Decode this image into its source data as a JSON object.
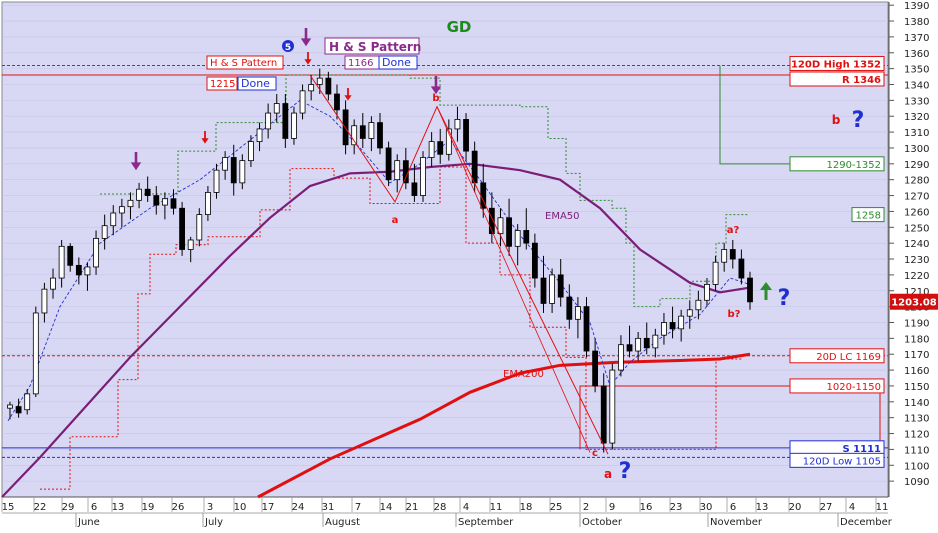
{
  "chart_data": {
    "type": "candlestick",
    "title": "GD",
    "ylim": [
      1080,
      1392
    ],
    "y_ticks": [
      1090,
      1100,
      1110,
      1120,
      1130,
      1140,
      1150,
      1160,
      1170,
      1180,
      1190,
      1200,
      1210,
      1220,
      1230,
      1240,
      1250,
      1260,
      1270,
      1280,
      1290,
      1300,
      1310,
      1320,
      1330,
      1340,
      1350,
      1360,
      1370,
      1380,
      1390
    ],
    "x_day_labels": [
      "15",
      "22",
      "29",
      "6",
      "13",
      "19",
      "26",
      "3",
      "10",
      "17",
      "24",
      "31",
      "7",
      "14",
      "21",
      "28",
      "4",
      "11",
      "18",
      "25",
      "2",
      "9",
      "16",
      "23",
      "30",
      "6",
      "13",
      "20",
      "27",
      "4",
      "11"
    ],
    "x_month_labels": [
      "June",
      "July",
      "August",
      "September",
      "October",
      "November",
      "December"
    ],
    "last_price": "1203.08",
    "colors": {
      "plot_bg": "#d8d8f4",
      "ema50": "#7a1e78",
      "ema200": "#e01010",
      "title": "#1a8a1a",
      "wave": "#8b2a8b",
      "support": "#2030d0"
    },
    "candles": [
      [
        1136,
        1140,
        1129,
        1138
      ],
      [
        1137,
        1142,
        1130,
        1133
      ],
      [
        1135,
        1148,
        1132,
        1145
      ],
      [
        1145,
        1200,
        1143,
        1196
      ],
      [
        1196,
        1215,
        1190,
        1211
      ],
      [
        1211,
        1224,
        1205,
        1218
      ],
      [
        1218,
        1242,
        1212,
        1238
      ],
      [
        1238,
        1240,
        1222,
        1226
      ],
      [
        1226,
        1231,
        1214,
        1220
      ],
      [
        1220,
        1228,
        1210,
        1225
      ],
      [
        1225,
        1248,
        1220,
        1243
      ],
      [
        1243,
        1258,
        1236,
        1251
      ],
      [
        1251,
        1264,
        1245,
        1259
      ],
      [
        1259,
        1268,
        1250,
        1263
      ],
      [
        1263,
        1272,
        1255,
        1267
      ],
      [
        1267,
        1278,
        1262,
        1274
      ],
      [
        1274,
        1282,
        1266,
        1270
      ],
      [
        1270,
        1276,
        1258,
        1264
      ],
      [
        1264,
        1272,
        1255,
        1268
      ],
      [
        1268,
        1274,
        1258,
        1262
      ],
      [
        1262,
        1266,
        1232,
        1236
      ],
      [
        1236,
        1244,
        1228,
        1242
      ],
      [
        1242,
        1262,
        1238,
        1258
      ],
      [
        1258,
        1276,
        1254,
        1272
      ],
      [
        1272,
        1290,
        1268,
        1286
      ],
      [
        1286,
        1298,
        1280,
        1294
      ],
      [
        1294,
        1302,
        1270,
        1278
      ],
      [
        1278,
        1296,
        1274,
        1292
      ],
      [
        1292,
        1308,
        1288,
        1304
      ],
      [
        1304,
        1316,
        1298,
        1312
      ],
      [
        1312,
        1328,
        1306,
        1322
      ],
      [
        1322,
        1334,
        1316,
        1328
      ],
      [
        1328,
        1334,
        1300,
        1306
      ],
      [
        1306,
        1326,
        1302,
        1322
      ],
      [
        1322,
        1340,
        1318,
        1336
      ],
      [
        1336,
        1346,
        1330,
        1340
      ],
      [
        1340,
        1350,
        1334,
        1344
      ],
      [
        1344,
        1348,
        1330,
        1334
      ],
      [
        1334,
        1340,
        1318,
        1324
      ],
      [
        1324,
        1330,
        1296,
        1302
      ],
      [
        1302,
        1318,
        1296,
        1314
      ],
      [
        1314,
        1322,
        1300,
        1306
      ],
      [
        1306,
        1320,
        1298,
        1316
      ],
      [
        1316,
        1322,
        1296,
        1300
      ],
      [
        1300,
        1304,
        1276,
        1280
      ],
      [
        1280,
        1296,
        1272,
        1292
      ],
      [
        1292,
        1300,
        1274,
        1278
      ],
      [
        1278,
        1290,
        1266,
        1270
      ],
      [
        1270,
        1298,
        1266,
        1294
      ],
      [
        1294,
        1310,
        1288,
        1304
      ],
      [
        1304,
        1312,
        1290,
        1296
      ],
      [
        1296,
        1318,
        1292,
        1312
      ],
      [
        1312,
        1326,
        1304,
        1318
      ],
      [
        1318,
        1322,
        1292,
        1298
      ],
      [
        1298,
        1304,
        1272,
        1278
      ],
      [
        1278,
        1290,
        1256,
        1262
      ],
      [
        1262,
        1272,
        1240,
        1246
      ],
      [
        1246,
        1262,
        1238,
        1256
      ],
      [
        1256,
        1268,
        1232,
        1238
      ],
      [
        1238,
        1252,
        1226,
        1248
      ],
      [
        1248,
        1262,
        1236,
        1240
      ],
      [
        1240,
        1246,
        1212,
        1218
      ],
      [
        1218,
        1232,
        1196,
        1202
      ],
      [
        1202,
        1224,
        1196,
        1220
      ],
      [
        1220,
        1230,
        1200,
        1206
      ],
      [
        1206,
        1214,
        1186,
        1192
      ],
      [
        1192,
        1206,
        1180,
        1200
      ],
      [
        1200,
        1206,
        1168,
        1172
      ],
      [
        1172,
        1180,
        1146,
        1150
      ],
      [
        1150,
        1158,
        1108,
        1114
      ],
      [
        1114,
        1164,
        1110,
        1160
      ],
      [
        1160,
        1182,
        1156,
        1176
      ],
      [
        1176,
        1188,
        1168,
        1172
      ],
      [
        1172,
        1184,
        1166,
        1180
      ],
      [
        1180,
        1190,
        1170,
        1174
      ],
      [
        1174,
        1186,
        1168,
        1182
      ],
      [
        1182,
        1196,
        1176,
        1190
      ],
      [
        1190,
        1200,
        1180,
        1186
      ],
      [
        1186,
        1198,
        1178,
        1194
      ],
      [
        1194,
        1204,
        1186,
        1198
      ],
      [
        1198,
        1210,
        1192,
        1204
      ],
      [
        1204,
        1218,
        1200,
        1214
      ],
      [
        1214,
        1232,
        1210,
        1228
      ],
      [
        1228,
        1240,
        1222,
        1236
      ],
      [
        1236,
        1242,
        1224,
        1230
      ],
      [
        1230,
        1236,
        1214,
        1218
      ],
      [
        1218,
        1222,
        1198,
        1203
      ]
    ],
    "ema50_label": "EMA50",
    "ema200_label": "EMA200"
  },
  "annotations": {
    "pattern_left_tag": "H & S Pattern",
    "pattern_top_tag": "H & S Pattern",
    "level_1215": "1215",
    "level_1166": "1166",
    "done_left": "Done",
    "done_right": "Done",
    "wave_a_aug": "a",
    "wave_b_aug": "b",
    "wave_c": "c",
    "wave_a_oct": "a",
    "wave_a_q": "a?",
    "wave_b_q": "b?",
    "wave_b_right": "b",
    "five_marker": "5",
    "q_mark": "?"
  },
  "right_labels": {
    "high_120d": "120D High 1352",
    "resistance": "R 1346",
    "range_1290": "1290-1352",
    "level_1258": "1258",
    "lc_20d": "20D LC 1169",
    "range_1020": "1020-1150",
    "support": "S 1111",
    "low_120d": "120D Low 1105"
  }
}
